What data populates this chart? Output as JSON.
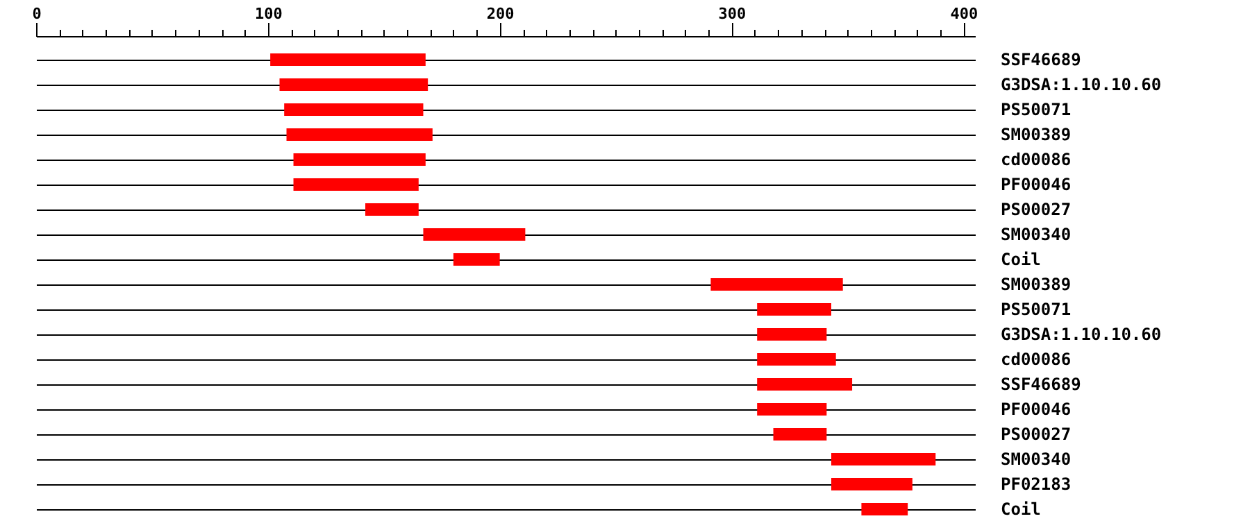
{
  "chart_data": {
    "type": "bar",
    "orientation": "horizontal",
    "categories": [
      "SSF46689",
      "G3DSA:1.10.10.60",
      "PS50071",
      "SM00389",
      "cd00086",
      "PF00046",
      "PS00027",
      "SM00340",
      "Coil",
      "SM00389",
      "PS50071",
      "G3DSA:1.10.10.60",
      "cd00086",
      "SSF46689",
      "PF00046",
      "PS00027",
      "SM00340",
      "PF02183",
      "Coil"
    ],
    "base": [
      101,
      105,
      107,
      108,
      111,
      111,
      142,
      167,
      180,
      291,
      311,
      311,
      311,
      311,
      311,
      318,
      343,
      343,
      356
    ],
    "values": [
      67,
      64,
      60,
      63,
      57,
      54,
      23,
      44,
      20,
      57,
      32,
      30,
      34,
      41,
      30,
      23,
      45,
      35,
      20
    ],
    "color": "#ff0000",
    "xlim": [
      0,
      405
    ],
    "xticks": [
      0,
      {
        "value": 10,
        "label": null
      },
      {
        "value": 20,
        "label": null
      },
      {
        "value": 30,
        "label": null
      },
      {
        "value": 40,
        "label": null
      },
      {
        "value": 50,
        "label": null
      },
      {
        "value": 60,
        "label": null
      },
      {
        "value": 70,
        "label": null
      },
      {
        "value": 80,
        "label": null
      },
      {
        "value": 90,
        "label": null
      },
      100,
      {
        "value": 110,
        "label": null
      },
      {
        "value": 120,
        "label": null
      },
      {
        "value": 130,
        "label": null
      },
      {
        "value": 140,
        "label": null
      },
      {
        "value": 150,
        "label": null
      },
      {
        "value": 160,
        "label": null
      },
      {
        "value": 170,
        "label": null
      },
      {
        "value": 180,
        "label": null
      },
      {
        "value": 190,
        "label": null
      },
      200,
      {
        "value": 210,
        "label": null
      },
      {
        "value": 220,
        "label": null
      },
      {
        "value": 230,
        "label": null
      },
      {
        "value": 240,
        "label": null
      },
      {
        "value": 250,
        "label": null
      },
      {
        "value": 260,
        "label": null
      },
      {
        "value": 270,
        "label": null
      },
      {
        "value": 280,
        "label": null
      },
      {
        "value": 290,
        "label": null
      },
      300,
      {
        "value": 310,
        "label": null
      },
      {
        "value": 320,
        "label": null
      },
      {
        "value": 330,
        "label": null
      },
      {
        "value": 340,
        "label": null
      },
      {
        "value": 350,
        "label": null
      },
      {
        "value": 360,
        "label": null
      },
      {
        "value": 370,
        "label": null
      },
      {
        "value": 380,
        "label": null
      },
      {
        "value": 390,
        "label": null
      },
      400
    ],
    "grid": "y"
  }
}
